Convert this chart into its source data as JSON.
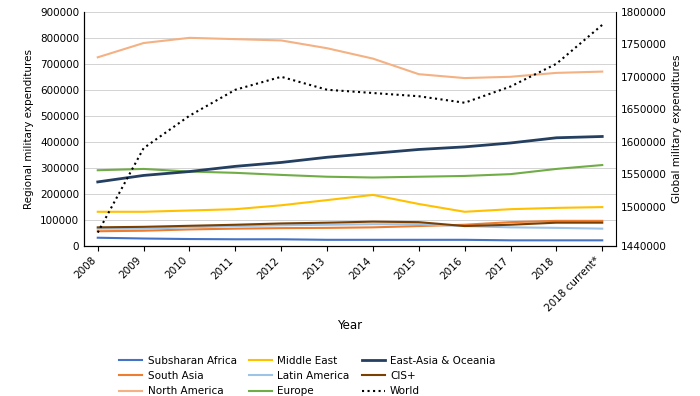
{
  "year_labels": [
    "2008",
    "2009",
    "2010",
    "2011",
    "2012",
    "2013",
    "2014",
    "2015",
    "2016",
    "2017",
    "2018",
    "2018 current*"
  ],
  "series": {
    "Subsharan Africa": {
      "color": "#4472C4",
      "linewidth": 1.5,
      "linestyle": "solid",
      "data": [
        30000,
        27000,
        25000,
        24000,
        24000,
        22000,
        22000,
        22000,
        22000,
        20000,
        20000,
        20000
      ]
    },
    "South Asia": {
      "color": "#ED7D31",
      "linewidth": 1.5,
      "linestyle": "solid",
      "data": [
        55000,
        57000,
        62000,
        65000,
        67000,
        68000,
        70000,
        75000,
        80000,
        90000,
        95000,
        95000
      ]
    },
    "North America": {
      "color": "#F4B183",
      "linewidth": 1.5,
      "linestyle": "solid",
      "data": [
        725000,
        780000,
        800000,
        795000,
        790000,
        760000,
        720000,
        660000,
        645000,
        650000,
        665000,
        670000
      ]
    },
    "Middle East": {
      "color": "#FFC000",
      "linewidth": 1.5,
      "linestyle": "solid",
      "data": [
        130000,
        130000,
        135000,
        140000,
        155000,
        175000,
        195000,
        160000,
        130000,
        140000,
        145000,
        148000
      ]
    },
    "Latin America": {
      "color": "#9DC3E6",
      "linewidth": 1.5,
      "linestyle": "solid",
      "data": [
        65000,
        65000,
        70000,
        75000,
        78000,
        80000,
        82000,
        82000,
        75000,
        70000,
        68000,
        65000
      ]
    },
    "Europe": {
      "color": "#70AD47",
      "linewidth": 1.5,
      "linestyle": "solid",
      "data": [
        290000,
        295000,
        285000,
        280000,
        272000,
        265000,
        262000,
        265000,
        268000,
        275000,
        295000,
        310000
      ]
    },
    "East-Asia & Oceania": {
      "color": "#243F60",
      "linewidth": 2.0,
      "linestyle": "solid",
      "data": [
        245000,
        270000,
        285000,
        305000,
        320000,
        340000,
        355000,
        370000,
        380000,
        395000,
        415000,
        420000
      ]
    },
    "CIS+": {
      "color": "#7B3F00",
      "linewidth": 1.5,
      "linestyle": "solid",
      "data": [
        70000,
        72000,
        76000,
        80000,
        85000,
        88000,
        92000,
        90000,
        75000,
        80000,
        88000,
        88000
      ]
    },
    "World": {
      "color": "#000000",
      "linewidth": 1.5,
      "linestyle": "dotted",
      "data": [
        1460000,
        1590000,
        1640000,
        1680000,
        1700000,
        1680000,
        1675000,
        1670000,
        1660000,
        1685000,
        1720000,
        1780000
      ]
    }
  },
  "left_ylim": [
    0,
    900000
  ],
  "right_ylim": [
    1440000,
    1800000
  ],
  "left_yticks": [
    0,
    100000,
    200000,
    300000,
    400000,
    500000,
    600000,
    700000,
    800000,
    900000
  ],
  "right_yticks": [
    1440000,
    1500000,
    1550000,
    1600000,
    1650000,
    1700000,
    1750000,
    1800000
  ],
  "xlabel": "Year",
  "ylabel_left": "Regional military expenditures",
  "ylabel_right": "Global military expenditures",
  "background_color": "#FFFFFF",
  "grid_color": "#CCCCCC",
  "legend_order": [
    "Subsharan Africa",
    "South Asia",
    "North America",
    "Middle East",
    "Latin America",
    "Europe",
    "East-Asia & Oceania",
    "CIS+",
    "World"
  ]
}
